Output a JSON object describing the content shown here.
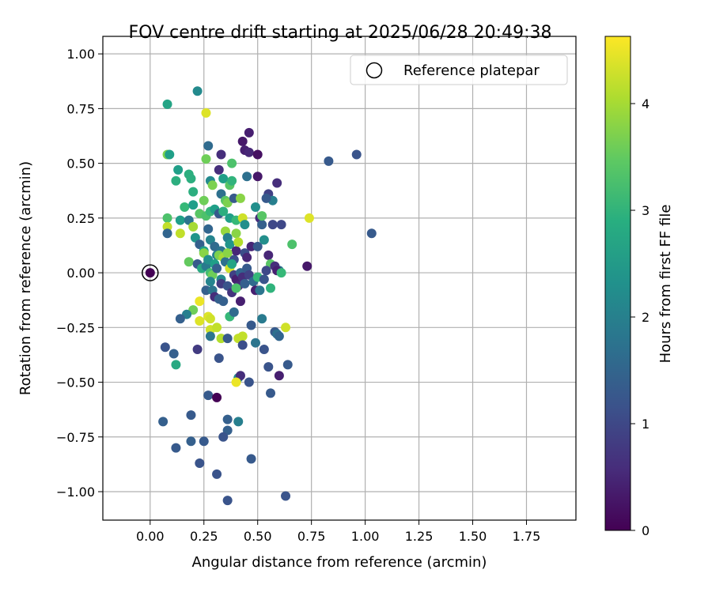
{
  "chart_data": {
    "type": "scatter",
    "title": "FOV centre drift starting at 2025/06/28 20:49:38",
    "xlabel": "Angular distance from reference (arcmin)",
    "ylabel": "Rotation from reference (arcmin)",
    "xlim": [
      -0.22,
      1.98
    ],
    "ylim": [
      -1.13,
      1.08
    ],
    "x_ticks": [
      0.0,
      0.25,
      0.5,
      0.75,
      1.0,
      1.25,
      1.5,
      1.75
    ],
    "x_tick_labels": [
      "0.00",
      "0.25",
      "0.50",
      "0.75",
      "1.00",
      "1.25",
      "1.50",
      "1.75"
    ],
    "y_ticks": [
      1.0,
      0.75,
      0.5,
      0.25,
      0.0,
      -0.25,
      -0.5,
      -0.75,
      -1.0
    ],
    "y_tick_labels": [
      "1.00",
      "0.75",
      "0.50",
      "0.25",
      "0.00",
      "−0.25",
      "−0.50",
      "−0.75",
      "−1.00"
    ],
    "grid": true,
    "legend": {
      "placement": "upper right",
      "entries": [
        "Reference platepar"
      ]
    },
    "colormap": "viridis",
    "colorbar": {
      "label": "Hours from first FF file",
      "range": [
        0,
        4.63
      ],
      "ticks": [
        0,
        1,
        2,
        3,
        4
      ],
      "tick_labels": [
        "0",
        "1",
        "2",
        "3",
        "4"
      ]
    },
    "reference_point": {
      "name": "Reference platepar",
      "x": 0.0,
      "y": 0.0
    },
    "points": [
      [
        0.0,
        0.0,
        0.0
      ],
      [
        0.08,
        0.77,
        2.7
      ],
      [
        0.22,
        0.83,
        2.2
      ],
      [
        0.26,
        0.73,
        4.4
      ],
      [
        0.08,
        0.54,
        3.7
      ],
      [
        0.09,
        0.54,
        2.6
      ],
      [
        0.27,
        0.58,
        1.6
      ],
      [
        0.33,
        0.54,
        0.6
      ],
      [
        0.43,
        0.6,
        0.3
      ],
      [
        0.46,
        0.64,
        0.4
      ],
      [
        0.44,
        0.56,
        0.4
      ],
      [
        0.46,
        0.55,
        0.5
      ],
      [
        0.5,
        0.54,
        0.2
      ],
      [
        0.83,
        0.51,
        1.3
      ],
      [
        0.96,
        0.54,
        1.2
      ],
      [
        0.26,
        0.52,
        3.6
      ],
      [
        0.38,
        0.5,
        3.3
      ],
      [
        0.13,
        0.47,
        2.6
      ],
      [
        0.12,
        0.42,
        2.9
      ],
      [
        0.18,
        0.45,
        2.9
      ],
      [
        0.19,
        0.43,
        2.9
      ],
      [
        0.2,
        0.37,
        2.9
      ],
      [
        0.25,
        0.33,
        3.6
      ],
      [
        0.28,
        0.42,
        2.2
      ],
      [
        0.29,
        0.4,
        3.7
      ],
      [
        0.32,
        0.47,
        0.6
      ],
      [
        0.34,
        0.43,
        2.6
      ],
      [
        0.37,
        0.4,
        3.4
      ],
      [
        0.38,
        0.42,
        3.0
      ],
      [
        0.45,
        0.44,
        1.7
      ],
      [
        0.5,
        0.44,
        0.3
      ],
      [
        0.55,
        0.36,
        0.9
      ],
      [
        0.59,
        0.41,
        0.6
      ],
      [
        0.57,
        0.33,
        2.0
      ],
      [
        0.54,
        0.34,
        1.3
      ],
      [
        0.33,
        0.36,
        1.7
      ],
      [
        0.35,
        0.33,
        3.4
      ],
      [
        0.36,
        0.32,
        3.7
      ],
      [
        0.39,
        0.34,
        1.3
      ],
      [
        0.42,
        0.34,
        3.8
      ],
      [
        0.16,
        0.3,
        3.1
      ],
      [
        0.2,
        0.31,
        2.6
      ],
      [
        0.23,
        0.27,
        3.4
      ],
      [
        0.26,
        0.26,
        3.3
      ],
      [
        0.28,
        0.28,
        3.1
      ],
      [
        0.3,
        0.29,
        2.6
      ],
      [
        0.32,
        0.27,
        1.3
      ],
      [
        0.34,
        0.28,
        2.9
      ],
      [
        0.37,
        0.25,
        2.6
      ],
      [
        0.4,
        0.24,
        3.1
      ],
      [
        0.43,
        0.25,
        4.3
      ],
      [
        0.44,
        0.22,
        2.3
      ],
      [
        0.49,
        0.3,
        2.3
      ],
      [
        0.51,
        0.25,
        0.6
      ],
      [
        0.52,
        0.22,
        1.4
      ],
      [
        0.52,
        0.26,
        3.4
      ],
      [
        0.57,
        0.22,
        1.0
      ],
      [
        0.61,
        0.22,
        1.0
      ],
      [
        0.74,
        0.25,
        4.4
      ],
      [
        1.03,
        0.18,
        1.3
      ],
      [
        0.08,
        0.25,
        3.3
      ],
      [
        0.08,
        0.21,
        4.2
      ],
      [
        0.08,
        0.18,
        1.5
      ],
      [
        0.14,
        0.24,
        2.6
      ],
      [
        0.14,
        0.18,
        4.2
      ],
      [
        0.18,
        0.24,
        1.8
      ],
      [
        0.2,
        0.21,
        4.0
      ],
      [
        0.21,
        0.16,
        2.4
      ],
      [
        0.23,
        0.13,
        1.4
      ],
      [
        0.25,
        0.1,
        2.6
      ],
      [
        0.27,
        0.2,
        1.5
      ],
      [
        0.28,
        0.15,
        2.1
      ],
      [
        0.3,
        0.12,
        1.6
      ],
      [
        0.31,
        0.08,
        2.0
      ],
      [
        0.33,
        0.1,
        1.8
      ],
      [
        0.35,
        0.19,
        3.9
      ],
      [
        0.36,
        0.16,
        2.0
      ],
      [
        0.37,
        0.13,
        2.4
      ],
      [
        0.39,
        0.06,
        1.1
      ],
      [
        0.4,
        0.1,
        0.5
      ],
      [
        0.4,
        0.18,
        3.8
      ],
      [
        0.41,
        0.14,
        4.1
      ],
      [
        0.44,
        0.09,
        1.1
      ],
      [
        0.45,
        0.07,
        0.5
      ],
      [
        0.47,
        0.12,
        0.5
      ],
      [
        0.5,
        0.12,
        1.3
      ],
      [
        0.53,
        0.15,
        2.3
      ],
      [
        0.55,
        0.08,
        0.5
      ],
      [
        0.56,
        0.04,
        3.4
      ],
      [
        0.58,
        0.03,
        0.6
      ],
      [
        0.6,
        0.01,
        1.8
      ],
      [
        0.73,
        0.03,
        0.3
      ],
      [
        0.66,
        0.13,
        3.3
      ],
      [
        0.18,
        0.05,
        3.5
      ],
      [
        0.22,
        0.04,
        1.3
      ],
      [
        0.24,
        0.02,
        2.8
      ],
      [
        0.25,
        0.09,
        3.8
      ],
      [
        0.26,
        0.03,
        1.9
      ],
      [
        0.27,
        0.06,
        2.3
      ],
      [
        0.28,
        0.0,
        3.2
      ],
      [
        0.29,
        -0.01,
        3.6
      ],
      [
        0.3,
        0.04,
        2.6
      ],
      [
        0.31,
        0.02,
        1.4
      ],
      [
        0.32,
        0.08,
        3.7
      ],
      [
        0.33,
        -0.03,
        2.2
      ],
      [
        0.34,
        0.07,
        4.0
      ],
      [
        0.35,
        0.05,
        1.7
      ],
      [
        0.36,
        0.09,
        3.8
      ],
      [
        0.37,
        0.02,
        4.3
      ],
      [
        0.38,
        0.04,
        2.7
      ],
      [
        0.39,
        -0.01,
        0.9
      ],
      [
        0.4,
        -0.03,
        0.4
      ],
      [
        0.41,
        -0.06,
        0.5
      ],
      [
        0.42,
        0.0,
        1.5
      ],
      [
        0.43,
        -0.02,
        0.6
      ],
      [
        0.44,
        -0.05,
        1.4
      ],
      [
        0.45,
        0.02,
        1.3
      ],
      [
        0.46,
        -0.01,
        0.9
      ],
      [
        0.48,
        -0.04,
        1.6
      ],
      [
        0.49,
        -0.08,
        0.4
      ],
      [
        0.5,
        -0.02,
        3.1
      ],
      [
        0.51,
        -0.08,
        1.8
      ],
      [
        0.53,
        -0.03,
        1.2
      ],
      [
        0.54,
        0.01,
        1.0
      ],
      [
        0.56,
        -0.07,
        3.0
      ],
      [
        0.59,
        0.01,
        0.4
      ],
      [
        0.61,
        0.0,
        3.1
      ],
      [
        0.23,
        -0.13,
        4.5
      ],
      [
        0.26,
        -0.08,
        1.4
      ],
      [
        0.28,
        -0.04,
        2.1
      ],
      [
        0.29,
        -0.08,
        1.8
      ],
      [
        0.3,
        -0.11,
        0.6
      ],
      [
        0.32,
        -0.12,
        1.4
      ],
      [
        0.33,
        -0.05,
        0.8
      ],
      [
        0.34,
        -0.13,
        1.4
      ],
      [
        0.36,
        -0.06,
        1.2
      ],
      [
        0.38,
        -0.09,
        0.7
      ],
      [
        0.4,
        -0.07,
        3.3
      ],
      [
        0.42,
        -0.13,
        0.4
      ],
      [
        0.2,
        -0.17,
        3.6
      ],
      [
        0.17,
        -0.19,
        2.0
      ],
      [
        0.14,
        -0.21,
        1.4
      ],
      [
        0.23,
        -0.22,
        4.4
      ],
      [
        0.27,
        -0.2,
        4.4
      ],
      [
        0.28,
        -0.21,
        4.3
      ],
      [
        0.28,
        -0.26,
        4.3
      ],
      [
        0.28,
        -0.29,
        1.8
      ],
      [
        0.31,
        -0.25,
        4.2
      ],
      [
        0.33,
        -0.3,
        4.1
      ],
      [
        0.36,
        -0.3,
        1.3
      ],
      [
        0.37,
        -0.2,
        3.1
      ],
      [
        0.39,
        -0.18,
        1.6
      ],
      [
        0.41,
        -0.3,
        4.2
      ],
      [
        0.43,
        -0.29,
        4.2
      ],
      [
        0.43,
        -0.33,
        1.1
      ],
      [
        0.47,
        -0.24,
        1.3
      ],
      [
        0.49,
        -0.32,
        1.8
      ],
      [
        0.52,
        -0.21,
        1.9
      ],
      [
        0.53,
        -0.35,
        1.2
      ],
      [
        0.58,
        -0.27,
        1.3
      ],
      [
        0.59,
        -0.28,
        1.7
      ],
      [
        0.6,
        -0.29,
        1.5
      ],
      [
        0.63,
        -0.25,
        4.3
      ],
      [
        0.07,
        -0.34,
        1.2
      ],
      [
        0.11,
        -0.37,
        1.4
      ],
      [
        0.12,
        -0.42,
        2.8
      ],
      [
        0.22,
        -0.35,
        0.8
      ],
      [
        0.32,
        -0.39,
        1.2
      ],
      [
        0.41,
        -0.48,
        2.2
      ],
      [
        0.42,
        -0.47,
        0.6
      ],
      [
        0.4,
        -0.5,
        4.5
      ],
      [
        0.46,
        -0.5,
        1.2
      ],
      [
        0.55,
        -0.43,
        1.2
      ],
      [
        0.6,
        -0.47,
        0.4
      ],
      [
        0.64,
        -0.42,
        1.3
      ],
      [
        0.56,
        -0.55,
        1.3
      ],
      [
        0.27,
        -0.56,
        1.3
      ],
      [
        0.31,
        -0.57,
        0.0
      ],
      [
        0.06,
        -0.68,
        1.4
      ],
      [
        0.19,
        -0.65,
        1.3
      ],
      [
        0.36,
        -0.67,
        1.4
      ],
      [
        0.41,
        -0.68,
        2.0
      ],
      [
        0.36,
        -0.72,
        1.4
      ],
      [
        0.34,
        -0.75,
        1.2
      ],
      [
        0.19,
        -0.77,
        1.4
      ],
      [
        0.25,
        -0.77,
        1.3
      ],
      [
        0.12,
        -0.8,
        1.3
      ],
      [
        0.47,
        -0.85,
        1.3
      ],
      [
        0.23,
        -0.87,
        1.2
      ],
      [
        0.31,
        -0.92,
        1.2
      ],
      [
        0.63,
        -1.02,
        1.2
      ],
      [
        0.36,
        -1.04,
        1.2
      ]
    ]
  }
}
